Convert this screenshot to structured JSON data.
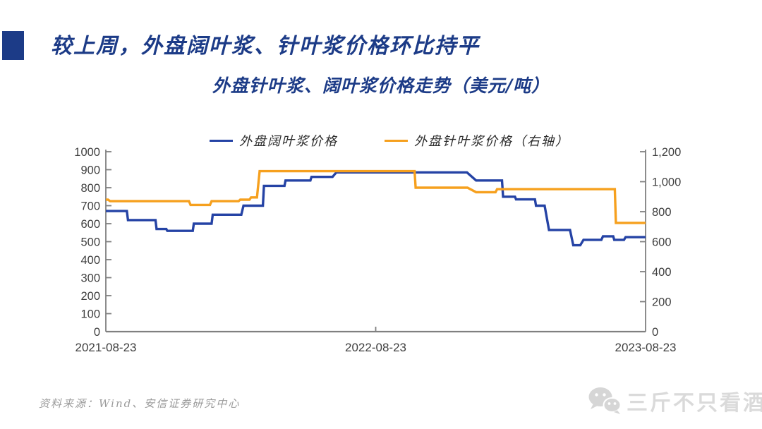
{
  "header": {
    "title": "较上周，外盘阔叶浆、针叶浆价格环比持平"
  },
  "footer": {
    "source": "资料来源：Wind、安信证券研究中心",
    "watermark": "三斤不只看酒",
    "watermark_icon": "wechat-chat-bubbles-icon"
  },
  "colors": {
    "accent_blue": "#1c3b87",
    "line_blue": "#2543a5",
    "line_orange": "#f6a01e",
    "axis_line": "#808080",
    "axis_text": "#404040",
    "source_text": "#9b9b9b",
    "watermark_gray": "#d6d6d6"
  },
  "chart_data": {
    "type": "line",
    "title": "外盘针叶浆、阔叶浆价格走势（美元/吨）",
    "unit": "美元/吨",
    "grid": false,
    "legend_position": "top",
    "x_axis": {
      "tick_labels": [
        "2021-08-23",
        "2022-08-23",
        "2023-08-23"
      ],
      "tick_positions": [
        0,
        0.5,
        1
      ]
    },
    "left_axis": {
      "min": 0,
      "max": 1000,
      "tick_step": 100,
      "thousands_separator": false
    },
    "right_axis": {
      "min": 0,
      "max": 1200,
      "tick_step": 200,
      "thousands_separator": true
    },
    "series": [
      {
        "name": "外盘阔叶浆价格",
        "axis": "left",
        "color": "#2543a5",
        "points": [
          [
            0.0,
            670
          ],
          [
            0.039,
            670
          ],
          [
            0.041,
            620
          ],
          [
            0.092,
            620
          ],
          [
            0.094,
            570
          ],
          [
            0.112,
            570
          ],
          [
            0.114,
            560
          ],
          [
            0.161,
            560
          ],
          [
            0.163,
            600
          ],
          [
            0.196,
            600
          ],
          [
            0.198,
            650
          ],
          [
            0.251,
            650
          ],
          [
            0.255,
            700
          ],
          [
            0.291,
            700
          ],
          [
            0.293,
            810
          ],
          [
            0.331,
            810
          ],
          [
            0.333,
            840
          ],
          [
            0.379,
            840
          ],
          [
            0.381,
            860
          ],
          [
            0.42,
            860
          ],
          [
            0.427,
            885
          ],
          [
            0.669,
            885
          ],
          [
            0.686,
            840
          ],
          [
            0.734,
            840
          ],
          [
            0.736,
            750
          ],
          [
            0.758,
            750
          ],
          [
            0.76,
            735
          ],
          [
            0.795,
            735
          ],
          [
            0.797,
            700
          ],
          [
            0.813,
            700
          ],
          [
            0.821,
            565
          ],
          [
            0.86,
            565
          ],
          [
            0.866,
            480
          ],
          [
            0.879,
            480
          ],
          [
            0.885,
            510
          ],
          [
            0.918,
            510
          ],
          [
            0.921,
            530
          ],
          [
            0.94,
            530
          ],
          [
            0.942,
            510
          ],
          [
            0.96,
            510
          ],
          [
            0.963,
            525
          ],
          [
            1.0,
            525
          ]
        ]
      },
      {
        "name": "外盘针叶浆价格（右轴）",
        "axis": "right",
        "color": "#f6a01e",
        "points": [
          [
            0.0,
            880
          ],
          [
            0.004,
            880
          ],
          [
            0.008,
            870
          ],
          [
            0.154,
            870
          ],
          [
            0.157,
            845
          ],
          [
            0.193,
            845
          ],
          [
            0.196,
            870
          ],
          [
            0.246,
            870
          ],
          [
            0.249,
            880
          ],
          [
            0.266,
            880
          ],
          [
            0.269,
            895
          ],
          [
            0.28,
            895
          ],
          [
            0.285,
            1070
          ],
          [
            0.572,
            1070
          ],
          [
            0.574,
            960
          ],
          [
            0.67,
            960
          ],
          [
            0.686,
            930
          ],
          [
            0.722,
            930
          ],
          [
            0.725,
            950
          ],
          [
            0.943,
            950
          ],
          [
            0.945,
            725
          ],
          [
            1.0,
            725
          ]
        ]
      }
    ]
  }
}
